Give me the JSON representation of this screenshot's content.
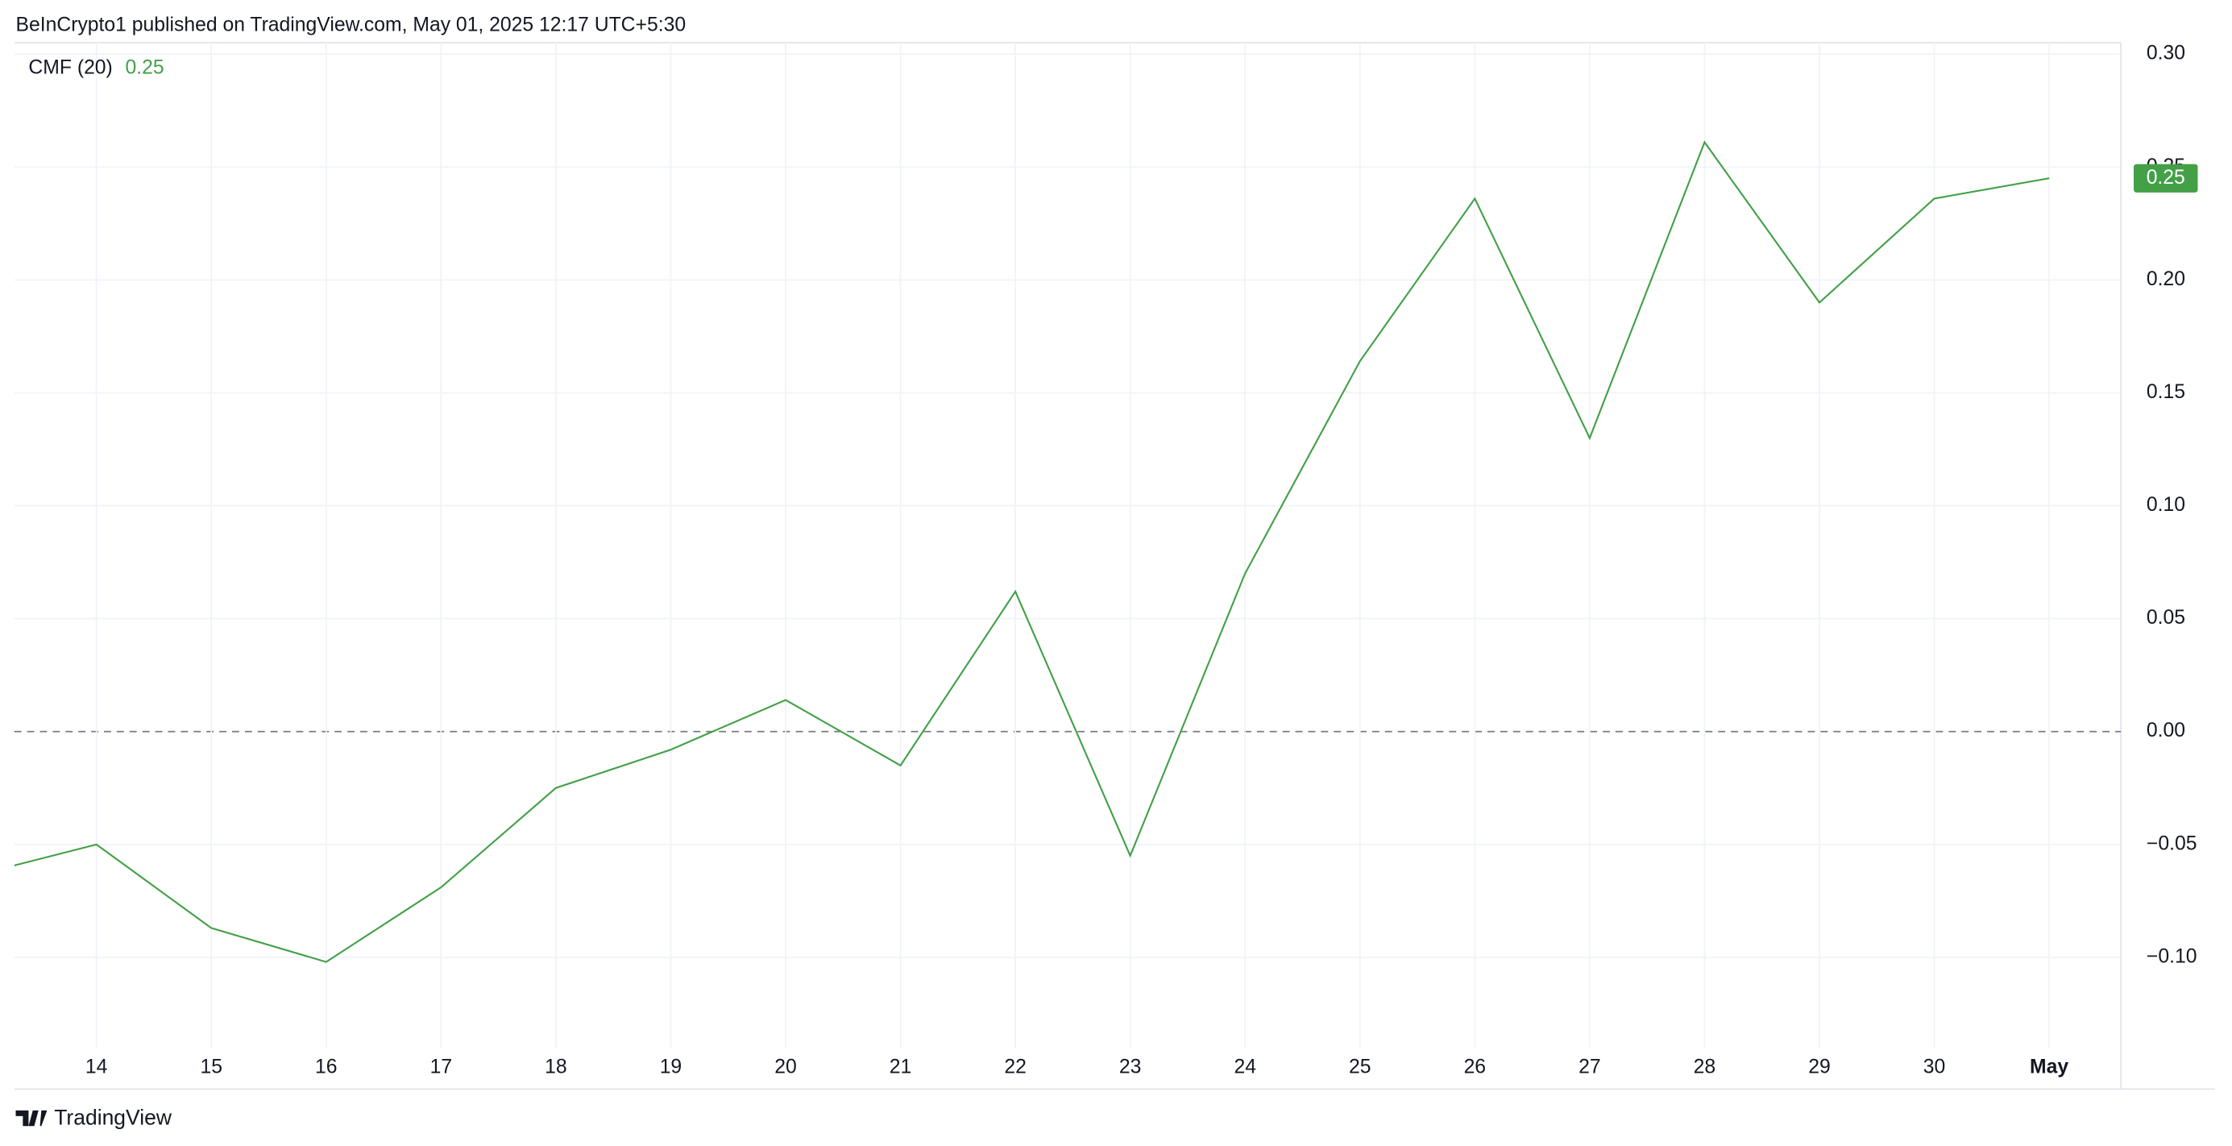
{
  "header": "BeInCrypto1 published on TradingView.com, May 01, 2025 12:17 UTC+5:30",
  "footer": "TradingView",
  "chart_data": {
    "type": "line",
    "legend_label": "CMF (20)",
    "legend_value": "0.25",
    "categories": [
      null,
      "14",
      "15",
      "16",
      "17",
      "18",
      "19",
      "20",
      "21",
      "22",
      "23",
      "24",
      "25",
      "26",
      "27",
      "28",
      "29",
      "30",
      "May"
    ],
    "series": [
      {
        "name": "CMF (20)",
        "color": "#43a047",
        "values": [
          -0.063,
          -0.05,
          -0.087,
          -0.102,
          -0.069,
          -0.025,
          -0.008,
          0.014,
          -0.015,
          0.062,
          -0.055,
          0.07,
          0.164,
          0.236,
          0.13,
          0.261,
          0.19,
          0.236,
          0.245
        ]
      }
    ],
    "ylim": [
      -0.135,
      0.3
    ],
    "yticks": [
      {
        "value": -0.1,
        "label": "−0.10"
      },
      {
        "value": -0.05,
        "label": "−0.05"
      },
      {
        "value": 0,
        "label": "0.00"
      },
      {
        "value": 0.05,
        "label": "0.05"
      },
      {
        "value": 0.1,
        "label": "0.10"
      },
      {
        "value": 0.15,
        "label": "0.15"
      },
      {
        "value": 0.2,
        "label": "0.20"
      },
      {
        "value": 0.25,
        "label": "0.25"
      },
      {
        "value": 0.3,
        "label": "0.30"
      }
    ],
    "grid": true,
    "zero_line": true
  }
}
